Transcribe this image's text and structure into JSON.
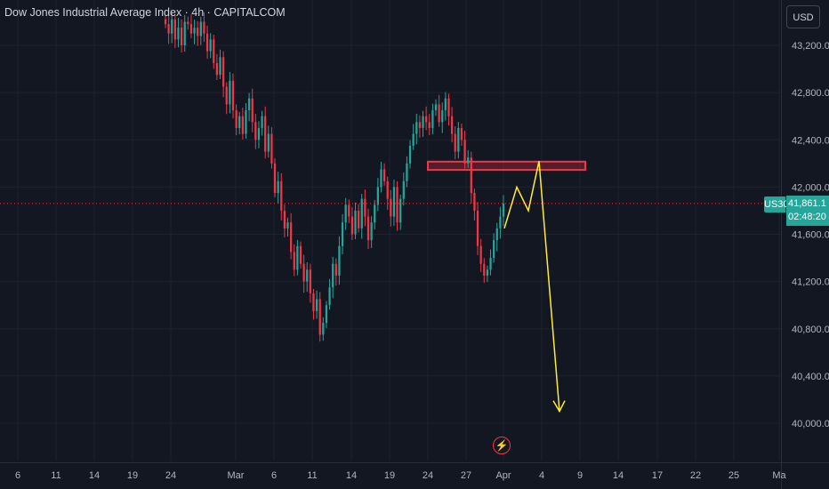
{
  "header": {
    "title": "Dow Jones Industrial Average Index · 4h · CAPITALCOM",
    "currency": "USD"
  },
  "price_label": {
    "symbol": "US30",
    "price": "41,861.1",
    "countdown": "02:48:20",
    "color": "#26a69a"
  },
  "colors": {
    "up": "#26a69a",
    "down": "#f23645",
    "projection": "#ffeb3b",
    "zone": "#f23645",
    "grid": "#1e222d",
    "axis_text": "#b2b5be",
    "background": "#131722"
  },
  "chart_data": {
    "type": "candlestick",
    "y_axis": {
      "ticks": [
        43200,
        42800,
        42400,
        42000,
        41600,
        41200,
        40800,
        40400,
        40000
      ],
      "tick_labels": [
        "43,200.0",
        "42,800.0",
        "42,400.0",
        "42,000.0",
        "41,600.0",
        "41,200.0",
        "40,800.0",
        "40,400.0",
        "40,000.0"
      ],
      "range": [
        39900,
        43450
      ]
    },
    "x_axis": {
      "tick_labels": [
        "6",
        "11",
        "14",
        "19",
        "24",
        "Mar",
        "6",
        "11",
        "14",
        "19",
        "24",
        "27",
        "Apr",
        "4",
        "9",
        "14",
        "17",
        "22",
        "25",
        "Ma"
      ]
    },
    "current_price": 41861.1,
    "resistance_zone": {
      "low": 42145,
      "high": 42215
    },
    "series_closes": [
      43380,
      43300,
      43420,
      43250,
      43350,
      43200,
      43400,
      43380,
      43300,
      43350,
      43280,
      43400,
      43300,
      43150,
      43250,
      43050,
      42950,
      43100,
      42850,
      42700,
      42900,
      42650,
      42500,
      42600,
      42450,
      42650,
      42750,
      42550,
      42400,
      42500,
      42600,
      42300,
      42450,
      42200,
      41950,
      42050,
      41800,
      41650,
      41700,
      41450,
      41300,
      41500,
      41350,
      41200,
      41300,
      41100,
      40950,
      41050,
      40750,
      40850,
      41000,
      41150,
      41350,
      41250,
      41500,
      41700,
      41850,
      41750,
      41600,
      41800,
      41650,
      41900,
      41750,
      41550,
      41700,
      41850,
      42000,
      42150,
      42050,
      41900,
      41750,
      42000,
      41700,
      41900,
      42050,
      42200,
      42350,
      42450,
      42550,
      42500,
      42600,
      42550,
      42500,
      42650,
      42700,
      42550,
      42650,
      42750,
      42600,
      42450,
      42300,
      42500,
      42400,
      42200,
      42250,
      41950,
      41800,
      41500,
      41350,
      41250,
      41300,
      41400,
      41550,
      41650,
      41750,
      41861.1
    ],
    "projection_path": [
      {
        "x": 0,
        "y": 41650
      },
      {
        "x": 1,
        "y": 42000
      },
      {
        "x": 2,
        "y": 41800
      },
      {
        "x": 3,
        "y": 42220
      },
      {
        "x": 4,
        "y": 40100
      }
    ]
  }
}
